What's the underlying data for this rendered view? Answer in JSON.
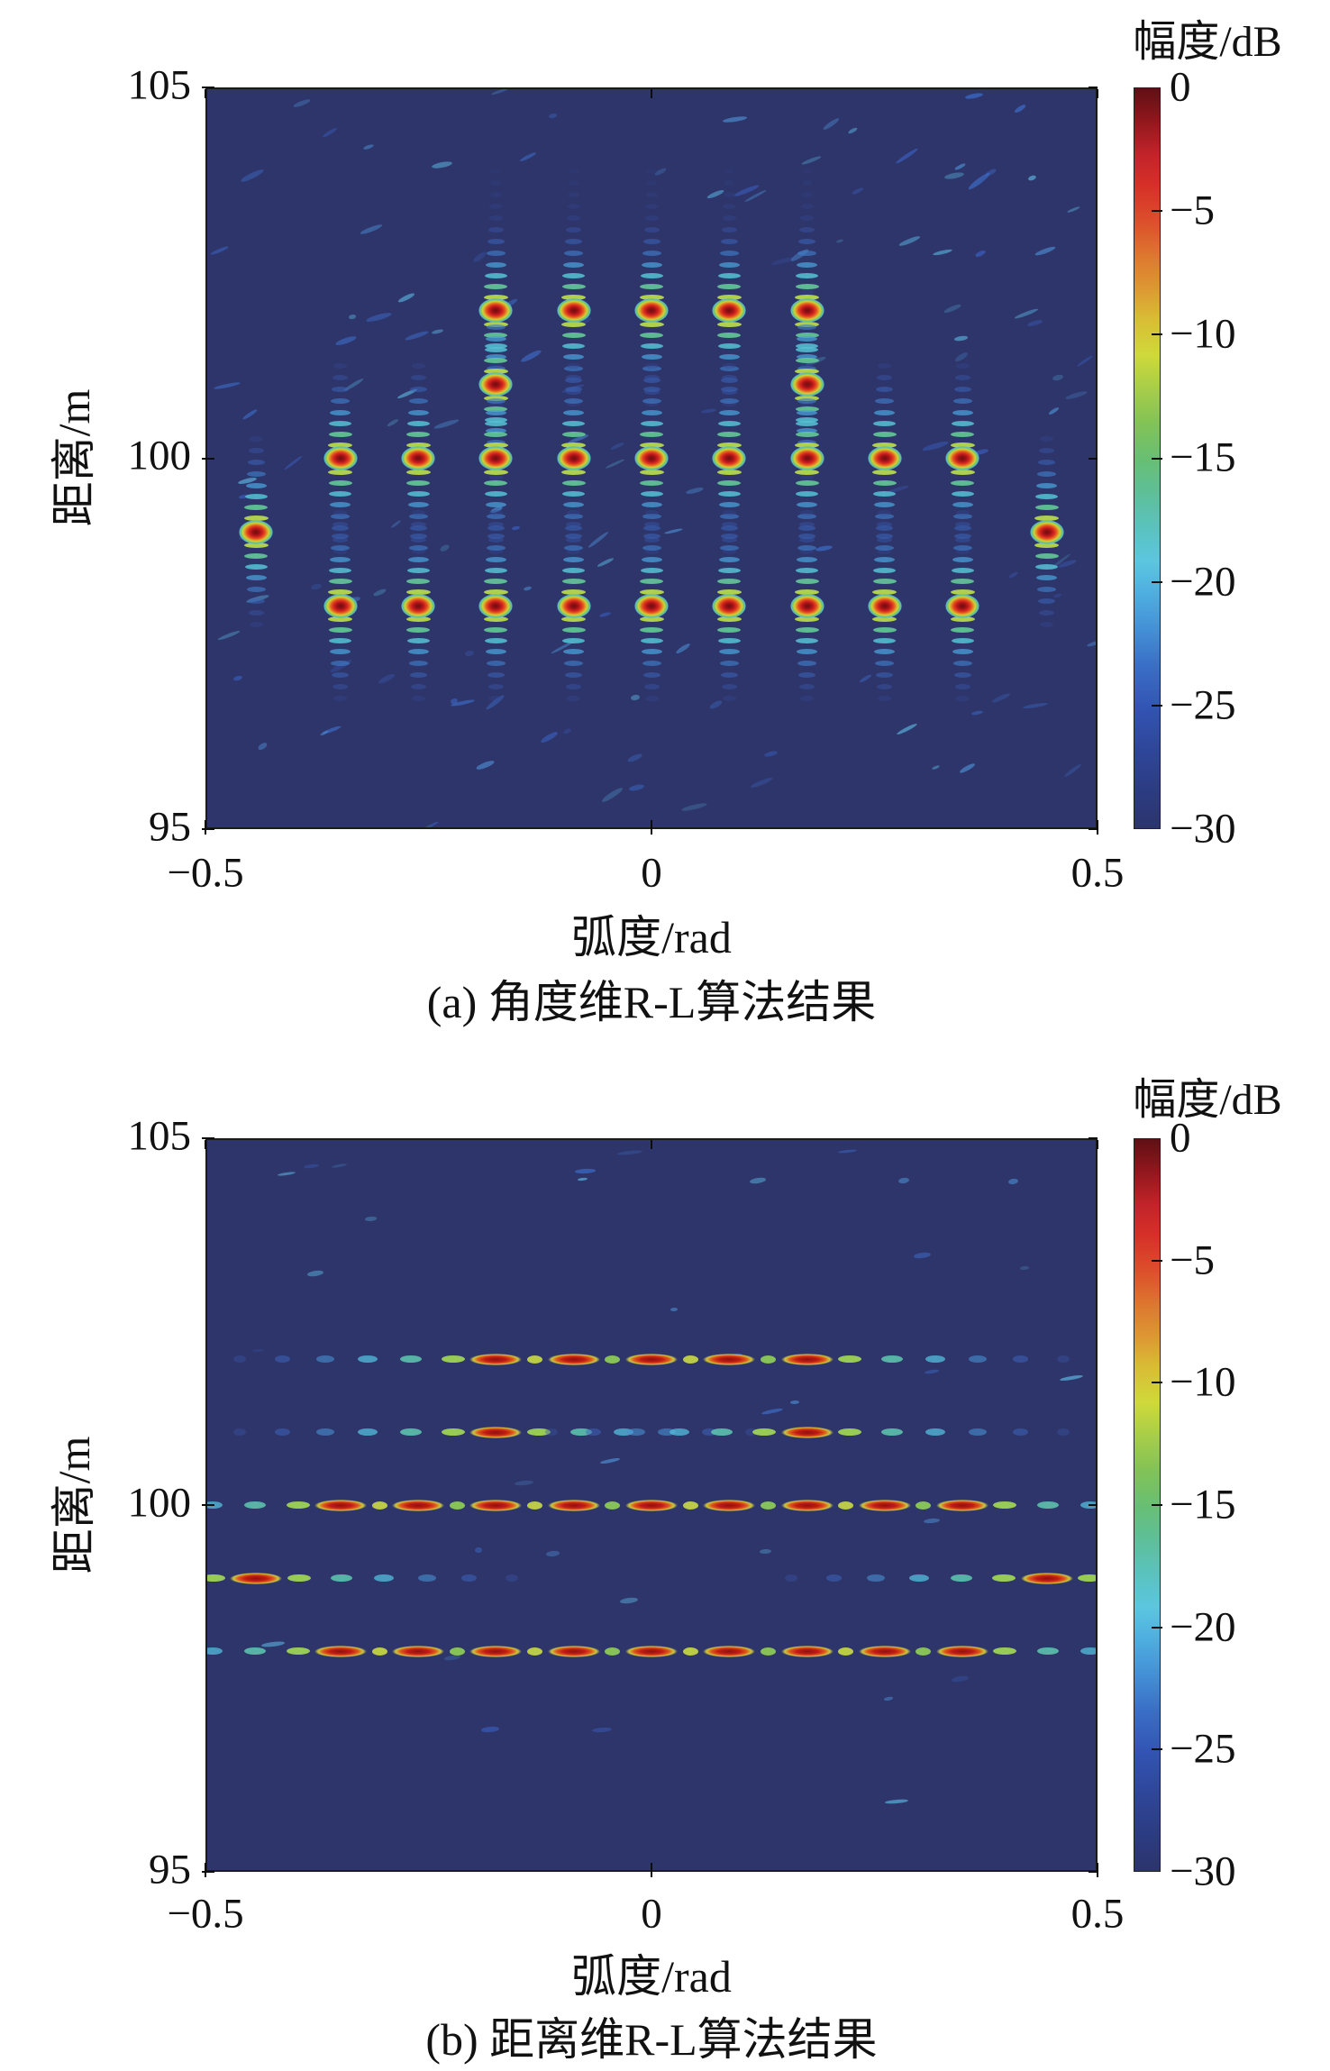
{
  "figure": {
    "panels": [
      {
        "id": "a",
        "colorbar_title": "幅度/dB",
        "ylabel": "距离/m",
        "xlabel": "弧度/rad",
        "caption": "(a) 角度维R-L算法结果",
        "y_ticks": [
          "105",
          "100",
          "95"
        ],
        "x_ticks": [
          "−0.5",
          "0",
          "0.5"
        ],
        "colorbar_ticks": [
          "0",
          "−5",
          "−10",
          "−15",
          "−20",
          "−25",
          "−30"
        ]
      },
      {
        "id": "b",
        "colorbar_title": "幅度/dB",
        "ylabel": "距离/m",
        "xlabel": "弧度/rad",
        "caption": "(b) 距离维R-L算法结果",
        "y_ticks": [
          "105",
          "100",
          "95"
        ],
        "x_ticks": [
          "−0.5",
          "0",
          "0.5"
        ],
        "colorbar_ticks": [
          "0",
          "−5",
          "−10",
          "−15",
          "−20",
          "−25",
          "−30"
        ]
      }
    ],
    "colors": {
      "plot_background": "#2e356a",
      "colormap": "jet",
      "peak": "#5f1015",
      "floor": "#2b346d"
    }
  },
  "chart_data": [
    {
      "type": "heatmap",
      "panel": "a",
      "caption": "(a) 角度维R-L算法结果",
      "xlabel": "弧度/rad",
      "ylabel": "距离/m",
      "colorbar_label": "幅度/dB",
      "xlim": [
        -0.5,
        0.5
      ],
      "ylim": [
        95,
        105
      ],
      "x_ticks": [
        -0.5,
        0,
        0.5
      ],
      "y_ticks": [
        95,
        100,
        105
      ],
      "colorbar_range": [
        -30,
        0
      ],
      "colorbar_ticks": [
        0,
        -5,
        -10,
        -15,
        -20,
        -25,
        -30
      ],
      "colormap": "jet",
      "description": "Angle-dimension R-L deconvolution result: point targets focused in angle, each with vertical range-sidelobe stripe trains",
      "targets": [
        {
          "rad": -0.175,
          "range": 102
        },
        {
          "rad": -0.0875,
          "range": 102
        },
        {
          "rad": 0,
          "range": 102
        },
        {
          "rad": 0.0875,
          "range": 102
        },
        {
          "rad": 0.175,
          "range": 102
        },
        {
          "rad": -0.175,
          "range": 101
        },
        {
          "rad": 0.175,
          "range": 101
        },
        {
          "rad": -0.35,
          "range": 100
        },
        {
          "rad": -0.2625,
          "range": 100
        },
        {
          "rad": -0.175,
          "range": 100
        },
        {
          "rad": -0.0875,
          "range": 100
        },
        {
          "rad": 0,
          "range": 100
        },
        {
          "rad": 0.0875,
          "range": 100
        },
        {
          "rad": 0.175,
          "range": 100
        },
        {
          "rad": 0.2625,
          "range": 100
        },
        {
          "rad": 0.35,
          "range": 100
        },
        {
          "rad": -0.445,
          "range": 99
        },
        {
          "rad": 0.445,
          "range": 99
        },
        {
          "rad": -0.35,
          "range": 98
        },
        {
          "rad": -0.2625,
          "range": 98
        },
        {
          "rad": -0.175,
          "range": 98
        },
        {
          "rad": -0.0875,
          "range": 98
        },
        {
          "rad": 0,
          "range": 98
        },
        {
          "rad": 0.0875,
          "range": 98
        },
        {
          "rad": 0.175,
          "range": 98
        },
        {
          "rad": 0.2625,
          "range": 98
        },
        {
          "rad": 0.35,
          "range": 98
        }
      ]
    },
    {
      "type": "heatmap",
      "panel": "b",
      "caption": "(b) 距离维R-L算法结果",
      "xlabel": "弧度/rad",
      "ylabel": "距离/m",
      "colorbar_label": "幅度/dB",
      "xlim": [
        -0.5,
        0.5
      ],
      "ylim": [
        95,
        105
      ],
      "x_ticks": [
        -0.5,
        0,
        0.5
      ],
      "y_ticks": [
        95,
        100,
        105
      ],
      "colorbar_range": [
        -30,
        0
      ],
      "colorbar_ticks": [
        0,
        -5,
        -10,
        -15,
        -20,
        -25,
        -30
      ],
      "colormap": "jet",
      "description": "Range-dimension R-L deconvolution result: targets focused in range but smeared along angle into dashed horizontal lines",
      "rows": [
        {
          "range": 102,
          "rads": [
            -0.175,
            -0.0875,
            0,
            0.0875,
            0.175
          ]
        },
        {
          "range": 101,
          "rads": [
            -0.175,
            0.175
          ]
        },
        {
          "range": 100,
          "rads": [
            -0.35,
            -0.2625,
            -0.175,
            -0.0875,
            0,
            0.0875,
            0.175,
            0.2625,
            0.35
          ]
        },
        {
          "range": 99,
          "rads": [
            -0.445,
            0.445
          ]
        },
        {
          "range": 98,
          "rads": [
            -0.35,
            -0.2625,
            -0.175,
            -0.0875,
            0,
            0.0875,
            0.175,
            0.2625,
            0.35
          ]
        }
      ]
    }
  ]
}
